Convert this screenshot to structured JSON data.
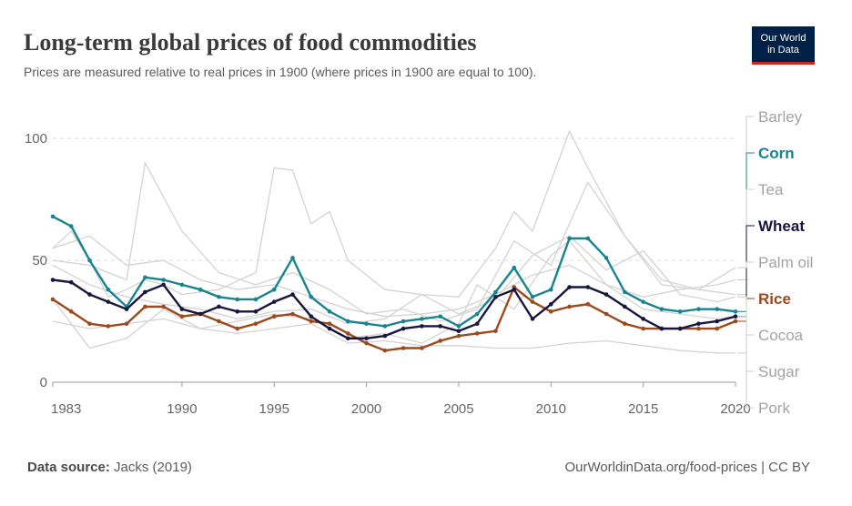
{
  "header": {
    "title": "Long-term global prices of food commodities",
    "subtitle": "Prices are measured relative to real prices in 1900 (where prices in 1900 are equal to 100).",
    "logo_line1": "Our World",
    "logo_line2": "in Data"
  },
  "footer": {
    "source_label": "Data source:",
    "source_value": "Jacks (2019)",
    "url": "OurWorldinData.org/food-prices | CC BY"
  },
  "colors": {
    "corn": "#18848f",
    "wheat": "#16163f",
    "rice": "#9a4a1c",
    "background_series": "#d3d3d3",
    "legend_muted": "#a3a3a3"
  },
  "chart_data": {
    "type": "line",
    "title": "Long-term global prices of food commodities",
    "xlabel": "",
    "ylabel": "",
    "xlim": [
      1983,
      2020
    ],
    "ylim": [
      0,
      115
    ],
    "x_ticks": [
      1983,
      1990,
      1995,
      2000,
      2005,
      2010,
      2015,
      2020
    ],
    "y_ticks": [
      0,
      50,
      100
    ],
    "grid": "dashed horizontal at 50 and 100",
    "legend_order": [
      "Barley",
      "Corn",
      "Tea",
      "Wheat",
      "Palm oil",
      "Rice",
      "Cocoa",
      "Sugar",
      "Pork"
    ],
    "highlighted": [
      "Corn",
      "Wheat",
      "Rice"
    ],
    "series": [
      {
        "name": "Corn",
        "x": [
          1983,
          1984,
          1985,
          1986,
          1987,
          1988,
          1989,
          1990,
          1991,
          1992,
          1993,
          1994,
          1995,
          1996,
          1997,
          1998,
          1999,
          2000,
          2001,
          2002,
          2003,
          2004,
          2005,
          2006,
          2007,
          2008,
          2009,
          2010,
          2011,
          2012,
          2013,
          2014,
          2015,
          2016,
          2017,
          2018,
          2019,
          2020
        ],
        "values": [
          68,
          64,
          50,
          38,
          31,
          43,
          42,
          40,
          38,
          35,
          34,
          34,
          38,
          51,
          35,
          29,
          25,
          24,
          23,
          25,
          26,
          27,
          23,
          28,
          37,
          47,
          35,
          38,
          59,
          59,
          51,
          37,
          33,
          30,
          29,
          30,
          30,
          29
        ]
      },
      {
        "name": "Wheat",
        "x": [
          1983,
          1984,
          1985,
          1986,
          1987,
          1988,
          1989,
          1990,
          1991,
          1992,
          1993,
          1994,
          1995,
          1996,
          1997,
          1998,
          1999,
          2000,
          2001,
          2002,
          2003,
          2004,
          2005,
          2006,
          2007,
          2008,
          2009,
          2010,
          2011,
          2012,
          2013,
          2014,
          2015,
          2016,
          2017,
          2018,
          2019,
          2020
        ],
        "values": [
          42,
          41,
          36,
          33,
          30,
          37,
          40,
          30,
          28,
          31,
          29,
          29,
          33,
          36,
          27,
          22,
          18,
          18,
          19,
          22,
          23,
          23,
          21,
          24,
          35,
          38,
          26,
          32,
          39,
          39,
          36,
          31,
          26,
          22,
          22,
          24,
          25,
          27
        ]
      },
      {
        "name": "Rice",
        "x": [
          1983,
          1984,
          1985,
          1986,
          1987,
          1988,
          1989,
          1990,
          1991,
          1992,
          1993,
          1994,
          1995,
          1996,
          1997,
          1998,
          1999,
          2000,
          2001,
          2002,
          2003,
          2004,
          2005,
          2006,
          2007,
          2008,
          2009,
          2010,
          2011,
          2012,
          2013,
          2014,
          2015,
          2016,
          2017,
          2018,
          2019,
          2020
        ],
        "values": [
          34,
          29,
          24,
          23,
          24,
          31,
          31,
          27,
          28,
          25,
          22,
          24,
          27,
          28,
          25,
          24,
          20,
          16,
          13,
          14,
          14,
          17,
          19,
          20,
          21,
          39,
          33,
          29,
          31,
          32,
          28,
          24,
          22,
          22,
          22,
          22,
          22,
          25
        ]
      },
      {
        "name": "Barley",
        "x": [
          1983,
          1985,
          1987,
          1988,
          1990,
          1992,
          1994,
          1996,
          1998,
          2000,
          2002,
          2004,
          2006,
          2008,
          2010,
          2012,
          2014,
          2016,
          2018,
          2020
        ],
        "values": [
          50,
          48,
          42,
          90,
          62,
          45,
          40,
          45,
          38,
          28,
          30,
          25,
          30,
          58,
          48,
          82,
          60,
          40,
          38,
          36
        ]
      },
      {
        "name": "Tea",
        "x": [
          1983,
          1985,
          1987,
          1989,
          1991,
          1993,
          1995,
          1997,
          1999,
          2001,
          2003,
          2005,
          2007,
          2009,
          2011,
          2013,
          2015,
          2017,
          2019,
          2020
        ],
        "values": [
          55,
          60,
          48,
          50,
          42,
          38,
          40,
          35,
          30,
          27,
          28,
          30,
          36,
          44,
          48,
          40,
          35,
          38,
          40,
          42
        ]
      },
      {
        "name": "Palm oil",
        "x": [
          1983,
          1984,
          1985,
          1986,
          1987,
          1988,
          1989,
          1990,
          1992,
          1994,
          1995,
          1996,
          1997,
          1998,
          1999,
          2001,
          2003,
          2005,
          2007,
          2008,
          2009,
          2011,
          2012,
          2013,
          2014,
          2016,
          2018,
          2020
        ],
        "values": [
          55,
          62,
          50,
          35,
          38,
          42,
          40,
          36,
          38,
          45,
          88,
          87,
          65,
          70,
          50,
          38,
          36,
          35,
          55,
          70,
          62,
          103,
          88,
          74,
          60,
          42,
          38,
          47
        ]
      },
      {
        "name": "Cocoa",
        "x": [
          1983,
          1985,
          1987,
          1989,
          1991,
          1993,
          1995,
          1997,
          1999,
          2001,
          2003,
          2005,
          2007,
          2009,
          2011,
          2013,
          2015,
          2017,
          2019,
          2020
        ],
        "values": [
          48,
          40,
          35,
          32,
          30,
          26,
          29,
          30,
          24,
          26,
          36,
          28,
          34,
          52,
          60,
          46,
          54,
          36,
          33,
          35
        ]
      },
      {
        "name": "Sugar",
        "x": [
          1983,
          1984,
          1985,
          1987,
          1989,
          1991,
          1993,
          1995,
          1997,
          1999,
          2001,
          2003,
          2005,
          2006,
          2008,
          2010,
          2011,
          2013,
          2015,
          2017,
          2019,
          2020
        ],
        "values": [
          34,
          24,
          14,
          18,
          30,
          22,
          25,
          28,
          26,
          18,
          20,
          16,
          24,
          40,
          30,
          52,
          58,
          40,
          30,
          28,
          26,
          27
        ]
      },
      {
        "name": "Pork",
        "x": [
          1983,
          1985,
          1987,
          1989,
          1991,
          1993,
          1995,
          1997,
          1999,
          2001,
          2003,
          2005,
          2007,
          2009,
          2011,
          2013,
          2015,
          2017,
          2019,
          2020
        ],
        "values": [
          25,
          22,
          24,
          26,
          22,
          20,
          22,
          24,
          16,
          17,
          15,
          15,
          14,
          14,
          16,
          17,
          15,
          13,
          12,
          12
        ]
      }
    ]
  }
}
